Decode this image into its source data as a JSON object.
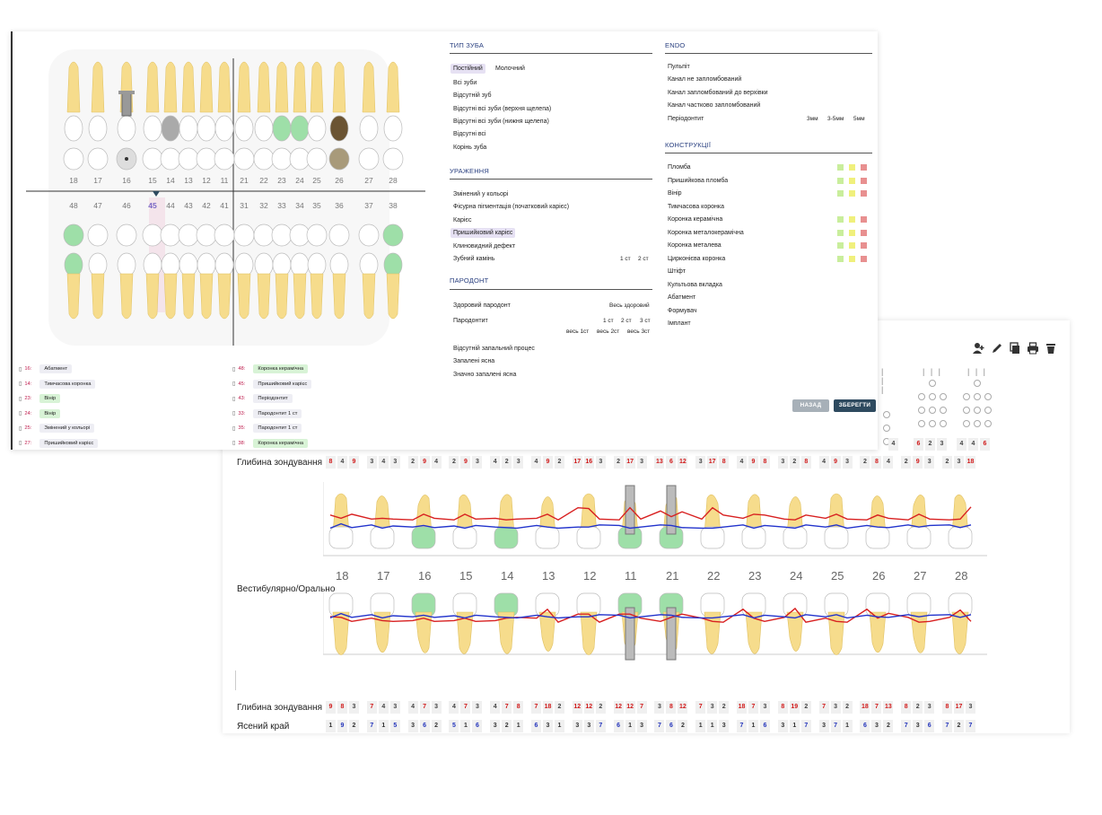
{
  "perio": {
    "probing_label": "Глибина зондування",
    "vestibular_label": "Вестибулярно/Орально",
    "probing_label_2": "Глибина зондування",
    "gingival_label": "Ясений край",
    "tooth_numbers": [
      "18",
      "17",
      "16",
      "15",
      "14",
      "13",
      "12",
      "11",
      "21",
      "22",
      "23",
      "24",
      "25",
      "26",
      "27",
      "28"
    ],
    "upper_probing": [
      [
        "8",
        "4",
        "9"
      ],
      [
        "3",
        "4",
        "3"
      ],
      [
        "2",
        "9",
        "4"
      ],
      [
        "2",
        "9",
        "3"
      ],
      [
        "4",
        "2",
        "3"
      ],
      [
        "4",
        "9",
        "2"
      ],
      [
        "17",
        "16",
        "3"
      ],
      [
        "2",
        "17",
        "3"
      ],
      [
        "13",
        "6",
        "12"
      ],
      [
        "3",
        "17",
        "8"
      ],
      [
        "4",
        "9",
        "8"
      ],
      [
        "3",
        "2",
        "8"
      ],
      [
        "4",
        "9",
        "3"
      ],
      [
        "2",
        "8",
        "4"
      ],
      [
        "2",
        "9",
        "3"
      ],
      [
        "2",
        "3",
        "18"
      ]
    ],
    "lower_probing": [
      [
        "9",
        "8",
        "3"
      ],
      [
        "7",
        "4",
        "3"
      ],
      [
        "4",
        "7",
        "3"
      ],
      [
        "4",
        "7",
        "3"
      ],
      [
        "4",
        "7",
        "8"
      ],
      [
        "7",
        "18",
        "2"
      ],
      [
        "12",
        "12",
        "2"
      ],
      [
        "12",
        "12",
        "7"
      ],
      [
        "3",
        "8",
        "12"
      ],
      [
        "7",
        "3",
        "2"
      ],
      [
        "18",
        "7",
        "3"
      ],
      [
        "8",
        "19",
        "2"
      ],
      [
        "7",
        "3",
        "2"
      ],
      [
        "18",
        "7",
        "13"
      ],
      [
        "8",
        "2",
        "3"
      ],
      [
        "8",
        "17",
        "3"
      ]
    ],
    "gingival": [
      [
        "1",
        "9",
        "2"
      ],
      [
        "7",
        "1",
        "5"
      ],
      [
        "3",
        "6",
        "2"
      ],
      [
        "5",
        "1",
        "6"
      ],
      [
        "3",
        "2",
        "1"
      ],
      [
        "6",
        "3",
        "1"
      ],
      [
        "3",
        "3",
        "7"
      ],
      [
        "6",
        "1",
        "3"
      ],
      [
        "7",
        "6",
        "2"
      ],
      [
        "1",
        "1",
        "3"
      ],
      [
        "7",
        "1",
        "6"
      ],
      [
        "3",
        "1",
        "7"
      ],
      [
        "3",
        "7",
        "1"
      ],
      [
        "6",
        "3",
        "2"
      ],
      [
        "7",
        "3",
        "6"
      ],
      [
        "7",
        "2",
        "7"
      ]
    ],
    "top_row_partial": [
      [
        "4"
      ],
      [
        "6",
        "2",
        "3"
      ],
      [
        "4",
        "4",
        "6"
      ]
    ],
    "tick_marks": "| | |",
    "icons": [
      "add-user-icon",
      "edit-icon",
      "copy-icon",
      "print-icon",
      "trash-icon"
    ]
  },
  "chart": {
    "tooth_numbers_upper": [
      "18",
      "17",
      "16",
      "15",
      "14",
      "13",
      "12",
      "11",
      "21",
      "22",
      "23",
      "24",
      "25",
      "26",
      "27",
      "28"
    ],
    "tooth_numbers_lower": [
      "48",
      "47",
      "46",
      "45",
      "44",
      "43",
      "42",
      "41",
      "31",
      "32",
      "33",
      "34",
      "35",
      "36",
      "37",
      "38"
    ],
    "selected_tooth": "45"
  },
  "legend_left": [
    {
      "num": "16:",
      "label": "Абатмент",
      "green": false
    },
    {
      "num": "14:",
      "label": "Тимчасова коронка",
      "green": false
    },
    {
      "num": "23:",
      "label": "Вінір",
      "green": true
    },
    {
      "num": "24:",
      "label": "Вінір",
      "green": true
    },
    {
      "num": "25:",
      "label": "Змінений у кольорі",
      "green": false
    },
    {
      "num": "27:",
      "label": "Пришийковий карієс",
      "green": false
    }
  ],
  "legend_right": [
    {
      "num": "48:",
      "label": "Коронка керамічна",
      "green": true
    },
    {
      "num": "45:",
      "label": "Пришийковий карієс",
      "green": false
    },
    {
      "num": "43:",
      "label": "Періодонтит",
      "green": false
    },
    {
      "num": "33:",
      "label": "Пародонтит 1 ст",
      "green": false
    },
    {
      "num": "35:",
      "label": "Пародонтит 1 ст",
      "green": false
    },
    {
      "num": "38:",
      "label": "Коронка керамічна",
      "green": true
    }
  ],
  "tooth_type": {
    "title": "ТИП ЗУБА",
    "tabs": [
      "Постійний",
      "Молочний"
    ],
    "options": [
      "Всі зуби",
      "Відсутній зуб",
      "Відсутні всі зуби (верхня щелепа)",
      "Відсутні всі зуби (нижня щелепа)",
      "Відсутні всі",
      "Корінь зуба"
    ]
  },
  "lesions": {
    "title": "УРАЖЕННЯ",
    "options": [
      "Змінений у кольорі",
      "Фісурна пігментація (початковий карієс)",
      "Карієс",
      "Пришийковий карієс",
      "Клиновидний дефект",
      "Зубний камінь"
    ],
    "tartar_stages": [
      "1 ст",
      "2 ст"
    ]
  },
  "parodont": {
    "title": "ПАРОДОНТ",
    "healthy": "Здоровий пародонт",
    "all_healthy": "Весь здоровий",
    "periodontitis": "Пародонтит",
    "stages": [
      "1 ст",
      "2 ст",
      "3 ст"
    ],
    "all_stages": [
      "весь 1ст",
      "весь 2ст",
      "весь 3ст"
    ],
    "options": [
      "Відсутній запальний процес",
      "Запалені ясна",
      "Значно запалені ясна"
    ]
  },
  "endo": {
    "title": "ENDO",
    "options": [
      "Пульпіт",
      "Канал не запломбований",
      "Канал запломбований до верхівки",
      "Канал частково запломбований",
      "Періодонтит"
    ],
    "sizes": [
      "3мм",
      "3-5мм",
      "5мм"
    ]
  },
  "constructions": {
    "title": "КОНСТРУКЦІЇ",
    "items": [
      {
        "label": "Пломба",
        "sw": true
      },
      {
        "label": "Пришийкова пломба",
        "sw": true
      },
      {
        "label": "Вінір",
        "sw": true
      },
      {
        "label": "Тимчасова коронка",
        "sw": false
      },
      {
        "label": "Коронка керамічна",
        "sw": true
      },
      {
        "label": "Коронка металокерамічна",
        "sw": true
      },
      {
        "label": "Коронка металева",
        "sw": true
      },
      {
        "label": "Цирконієва коронка",
        "sw": true
      },
      {
        "label": "Штіфт",
        "sw": false
      },
      {
        "label": "Культьова вкладка",
        "sw": false
      },
      {
        "label": "Абатмент",
        "sw": false
      },
      {
        "label": "Формувач",
        "sw": false
      },
      {
        "label": "Імплант",
        "sw": false
      }
    ],
    "swatch_colors": [
      "#c9ee9c",
      "#f0f07c",
      "#e89090"
    ]
  },
  "buttons": {
    "back": "НАЗАД",
    "save": "ЗБЕРЕГТИ"
  },
  "colors": {
    "accent": "#2e4a5f",
    "tooth": "#f6dc8c",
    "green_crown": "#9edfa8",
    "selection": "#e6e1f3"
  }
}
